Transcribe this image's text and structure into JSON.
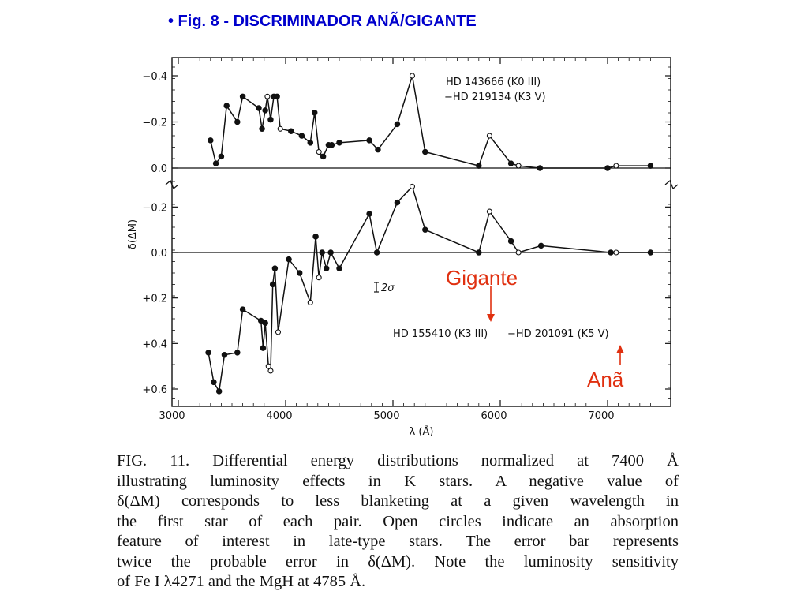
{
  "slide": {
    "title": "• Fig.  8  -  DISCRIMINADOR ANÃ/GIGANTE"
  },
  "annotations": {
    "giant": "Gigante",
    "dwarf": "Anã",
    "color": "#e03010"
  },
  "caption": {
    "lines": [
      "FIG. 11. Differential energy distributions normalized at 7400 Å",
      "illustrating luminosity effects in K stars. A negative value of",
      "δ(ΔM) corresponds to less blanketing at a given wavelength in",
      "the first star of each pair. Open circles indicate an absorption",
      "feature of interest in late-type stars. The error bar represents",
      "twice the probable error in δ(ΔM). Note the luminosity sensitivity",
      "of Fe I λ4271 and the MgH at 4785 Å."
    ]
  },
  "chart_data": [
    {
      "type": "line",
      "panel": "upper",
      "legend": [
        "HD 143666 (K0 III)",
        "−HD 219134 (K3 V)"
      ],
      "ylabel": "δ(ΔM)",
      "xlim": [
        3000,
        7500
      ],
      "ylim": [
        0.0,
        -0.4
      ],
      "yticks": [
        -0.4,
        -0.2,
        0.0
      ],
      "ytick_labels": [
        "−0.4",
        "−0.2",
        "0.0"
      ],
      "points": [
        {
          "x": 3300,
          "y": -0.12,
          "open": false
        },
        {
          "x": 3350,
          "y": -0.02,
          "open": false
        },
        {
          "x": 3400,
          "y": -0.05,
          "open": false
        },
        {
          "x": 3450,
          "y": -0.27,
          "open": false
        },
        {
          "x": 3550,
          "y": -0.2,
          "open": false
        },
        {
          "x": 3600,
          "y": -0.31,
          "open": false
        },
        {
          "x": 3750,
          "y": -0.26,
          "open": false
        },
        {
          "x": 3780,
          "y": -0.17,
          "open": false
        },
        {
          "x": 3810,
          "y": -0.25,
          "open": false
        },
        {
          "x": 3830,
          "y": -0.31,
          "open": true
        },
        {
          "x": 3860,
          "y": -0.21,
          "open": false
        },
        {
          "x": 3890,
          "y": -0.31,
          "open": false
        },
        {
          "x": 3920,
          "y": -0.31,
          "open": false
        },
        {
          "x": 3950,
          "y": -0.17,
          "open": true
        },
        {
          "x": 4050,
          "y": -0.16,
          "open": false
        },
        {
          "x": 4150,
          "y": -0.14,
          "open": false
        },
        {
          "x": 4230,
          "y": -0.11,
          "open": false
        },
        {
          "x": 4270,
          "y": -0.24,
          "open": false
        },
        {
          "x": 4310,
          "y": -0.07,
          "open": true
        },
        {
          "x": 4350,
          "y": -0.05,
          "open": false
        },
        {
          "x": 4400,
          "y": -0.1,
          "open": false
        },
        {
          "x": 4430,
          "y": -0.1,
          "open": false
        },
        {
          "x": 4500,
          "y": -0.11,
          "open": false
        },
        {
          "x": 4780,
          "y": -0.12,
          "open": false
        },
        {
          "x": 4860,
          "y": -0.08,
          "open": false
        },
        {
          "x": 5040,
          "y": -0.19,
          "open": false
        },
        {
          "x": 5180,
          "y": -0.4,
          "open": true
        },
        {
          "x": 5300,
          "y": -0.07,
          "open": false
        },
        {
          "x": 5800,
          "y": -0.01,
          "open": false
        },
        {
          "x": 5900,
          "y": -0.14,
          "open": true
        },
        {
          "x": 6100,
          "y": -0.02,
          "open": false
        },
        {
          "x": 6170,
          "y": -0.01,
          "open": true
        },
        {
          "x": 6370,
          "y": 0.0,
          "open": false
        },
        {
          "x": 7000,
          "y": 0.0,
          "open": false
        },
        {
          "x": 7080,
          "y": -0.01,
          "open": true
        },
        {
          "x": 7400,
          "y": -0.01,
          "open": false
        }
      ]
    },
    {
      "type": "line",
      "panel": "lower",
      "legend": [
        "HD 155410 (K3 III)",
        "−HD 201091 (K5 V)"
      ],
      "xlabel": "λ (Å)",
      "ylabel": "δ(ΔM)",
      "xlim": [
        3000,
        7500
      ],
      "ylim": [
        -0.3,
        0.65
      ],
      "xticks": [
        3000,
        4000,
        5000,
        6000,
        7000
      ],
      "yticks": [
        -0.2,
        0.0,
        0.2,
        0.4,
        0.6
      ],
      "ytick_labels": [
        "−0.2",
        "0.0",
        "+0.2",
        "+0.4",
        "+0.6"
      ],
      "error_bar_label": "2σ",
      "points": [
        {
          "x": 3280,
          "y": 0.44,
          "open": false
        },
        {
          "x": 3330,
          "y": 0.57,
          "open": false
        },
        {
          "x": 3380,
          "y": 0.61,
          "open": false
        },
        {
          "x": 3430,
          "y": 0.45,
          "open": false
        },
        {
          "x": 3550,
          "y": 0.44,
          "open": false
        },
        {
          "x": 3600,
          "y": 0.25,
          "open": false
        },
        {
          "x": 3770,
          "y": 0.3,
          "open": false
        },
        {
          "x": 3790,
          "y": 0.42,
          "open": false
        },
        {
          "x": 3810,
          "y": 0.31,
          "open": false
        },
        {
          "x": 3840,
          "y": 0.5,
          "open": true
        },
        {
          "x": 3860,
          "y": 0.52,
          "open": true
        },
        {
          "x": 3880,
          "y": 0.14,
          "open": false
        },
        {
          "x": 3900,
          "y": 0.07,
          "open": false
        },
        {
          "x": 3930,
          "y": 0.35,
          "open": true
        },
        {
          "x": 4030,
          "y": 0.03,
          "open": false
        },
        {
          "x": 4130,
          "y": 0.09,
          "open": false
        },
        {
          "x": 4230,
          "y": 0.22,
          "open": true
        },
        {
          "x": 4280,
          "y": -0.07,
          "open": false
        },
        {
          "x": 4310,
          "y": 0.11,
          "open": true
        },
        {
          "x": 4340,
          "y": 0.0,
          "open": false
        },
        {
          "x": 4380,
          "y": 0.07,
          "open": false
        },
        {
          "x": 4420,
          "y": 0.0,
          "open": false
        },
        {
          "x": 4500,
          "y": 0.07,
          "open": false
        },
        {
          "x": 4780,
          "y": -0.17,
          "open": false
        },
        {
          "x": 4850,
          "y": 0.0,
          "open": false
        },
        {
          "x": 5040,
          "y": -0.22,
          "open": false
        },
        {
          "x": 5180,
          "y": -0.29,
          "open": true
        },
        {
          "x": 5300,
          "y": -0.1,
          "open": false
        },
        {
          "x": 5800,
          "y": 0.0,
          "open": false
        },
        {
          "x": 5900,
          "y": -0.18,
          "open": true
        },
        {
          "x": 6100,
          "y": -0.05,
          "open": false
        },
        {
          "x": 6170,
          "y": 0.0,
          "open": true
        },
        {
          "x": 6380,
          "y": -0.03,
          "open": false
        },
        {
          "x": 7030,
          "y": 0.0,
          "open": false
        },
        {
          "x": 7080,
          "y": 0.0,
          "open": true
        },
        {
          "x": 7400,
          "y": 0.0,
          "open": false
        }
      ]
    }
  ]
}
